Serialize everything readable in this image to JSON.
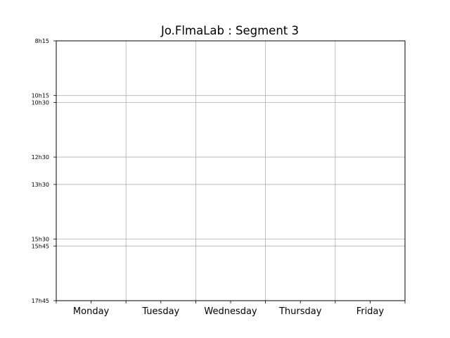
{
  "chart_data": {
    "type": "table",
    "title": "Jo.FlmaLab : Segment 3",
    "xlabel": "",
    "ylabel": "",
    "categories": [
      "Monday",
      "Tuesday",
      "Wednesday",
      "Thursday",
      "Friday"
    ],
    "y_ticks": [
      {
        "label": "8h15",
        "hours": 8.25
      },
      {
        "label": "10h15",
        "hours": 10.25
      },
      {
        "label": "10h30",
        "hours": 10.5
      },
      {
        "label": "12h30",
        "hours": 12.5
      },
      {
        "label": "13h30",
        "hours": 13.5
      },
      {
        "label": "15h30",
        "hours": 15.5
      },
      {
        "label": "15h45",
        "hours": 15.75
      },
      {
        "label": "17h45",
        "hours": 17.75
      }
    ],
    "ylim_hours": [
      8.25,
      17.75
    ],
    "y_inverted": true,
    "grid": true,
    "events": [],
    "colors": {
      "grid": "#b0b0b0",
      "frame": "#000000",
      "background": "#ffffff"
    }
  }
}
